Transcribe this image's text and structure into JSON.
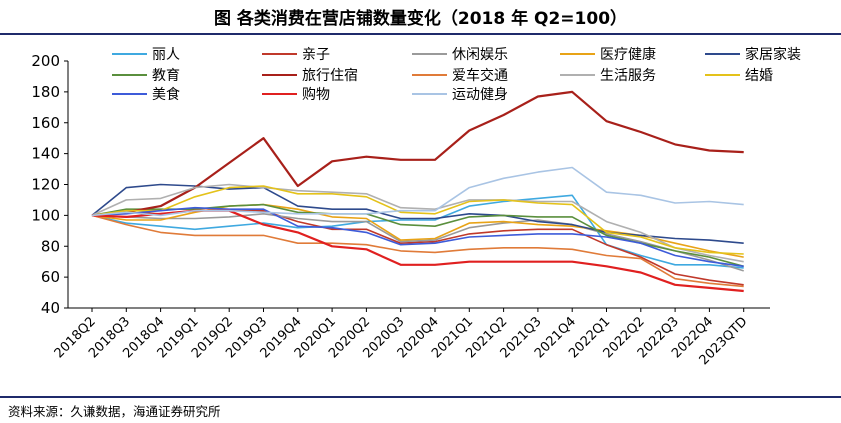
{
  "header": {
    "title": "图 各类消费在营店铺数量变化（2018 年 Q2=100）"
  },
  "footer": {
    "source": "资料来源：久谦数据，海通证券研究所"
  },
  "chart_data": {
    "type": "line",
    "title": "图 各类消费在营店铺数量变化（2018 年 Q2=100）",
    "xlabel": "",
    "ylabel": "",
    "ylim": [
      40,
      200
    ],
    "yticks": [
      40,
      60,
      80,
      100,
      120,
      140,
      160,
      180,
      200
    ],
    "grid": false,
    "legend": "top",
    "categories": [
      "2018Q2",
      "2018Q3",
      "2018Q4",
      "2019Q1",
      "2019Q2",
      "2019Q3",
      "2019Q4",
      "2020Q1",
      "2020Q2",
      "2020Q3",
      "2020Q4",
      "2021Q1",
      "2021Q2",
      "2021Q3",
      "2021Q4",
      "2022Q1",
      "2022Q2",
      "2022Q3",
      "2022Q4",
      "2023QTD"
    ],
    "series": [
      {
        "name": "丽人",
        "color": "#3fa9e0",
        "values": [
          100,
          95,
          93,
          91,
          93,
          95,
          92,
          93,
          96,
          97,
          97,
          106,
          109,
          111,
          113,
          81,
          74,
          68,
          68,
          66
        ]
      },
      {
        "name": "亲子",
        "color": "#c0392b",
        "values": [
          100,
          102,
          101,
          103,
          103,
          103,
          96,
          91,
          91,
          82,
          83,
          88,
          90,
          91,
          91,
          81,
          73,
          62,
          58,
          55
        ]
      },
      {
        "name": "休闲娱乐",
        "color": "#9a9a9a",
        "values": [
          100,
          99,
          98,
          98,
          99,
          101,
          98,
          96,
          96,
          83,
          84,
          92,
          95,
          97,
          94,
          88,
          83,
          77,
          71,
          64
        ]
      },
      {
        "name": "医疗健康",
        "color": "#e8a317",
        "values": [
          100,
          97,
          97,
          102,
          106,
          107,
          104,
          99,
          98,
          84,
          85,
          95,
          96,
          94,
          93,
          90,
          87,
          82,
          77,
          73
        ]
      },
      {
        "name": "家居家装",
        "color": "#2e4a8c",
        "values": [
          100,
          118,
          120,
          119,
          117,
          118,
          106,
          104,
          104,
          98,
          98,
          101,
          100,
          96,
          94,
          89,
          87,
          85,
          84,
          82
        ]
      },
      {
        "name": "教育",
        "color": "#5a8f3d",
        "values": [
          100,
          104,
          104,
          104,
          106,
          107,
          102,
          101,
          101,
          94,
          93,
          99,
          100,
          99,
          99,
          87,
          82,
          77,
          73,
          67
        ]
      },
      {
        "name": "旅行住宿",
        "color": "#a8201a",
        "values": [
          100,
          102,
          106,
          118,
          134,
          150,
          119,
          135,
          138,
          136,
          136,
          155,
          165,
          177,
          180,
          161,
          154,
          146,
          142,
          141
        ]
      },
      {
        "name": "爱车交通",
        "color": "#e07b39",
        "values": [
          100,
          94,
          89,
          87,
          87,
          87,
          82,
          82,
          81,
          77,
          76,
          78,
          79,
          79,
          78,
          74,
          72,
          59,
          56,
          54
        ]
      },
      {
        "name": "生活服务",
        "color": "#b0b0b0",
        "values": [
          100,
          110,
          111,
          118,
          120,
          118,
          116,
          115,
          114,
          105,
          104,
          110,
          110,
          109,
          109,
          96,
          89,
          79,
          74,
          70
        ]
      },
      {
        "name": "结婚",
        "color": "#e4c21a",
        "values": [
          100,
          103,
          103,
          112,
          118,
          119,
          114,
          114,
          112,
          102,
          101,
          109,
          110,
          108,
          107,
          89,
          86,
          79,
          76,
          75
        ]
      },
      {
        "name": "美食",
        "color": "#3d5bd9",
        "values": [
          100,
          101,
          103,
          105,
          104,
          104,
          93,
          92,
          89,
          81,
          82,
          86,
          87,
          88,
          88,
          86,
          82,
          74,
          70,
          67
        ]
      },
      {
        "name": "购物",
        "color": "#e02020",
        "values": [
          100,
          99,
          101,
          103,
          103,
          94,
          89,
          80,
          78,
          68,
          68,
          70,
          70,
          70,
          70,
          67,
          63,
          55,
          53,
          51
        ]
      },
      {
        "name": "运动健身",
        "color": "#a9c4e4",
        "values": [
          100,
          102,
          100,
          103,
          103,
          102,
          101,
          101,
          101,
          103,
          103,
          118,
          124,
          128,
          131,
          115,
          113,
          108,
          109,
          107
        ]
      }
    ]
  }
}
